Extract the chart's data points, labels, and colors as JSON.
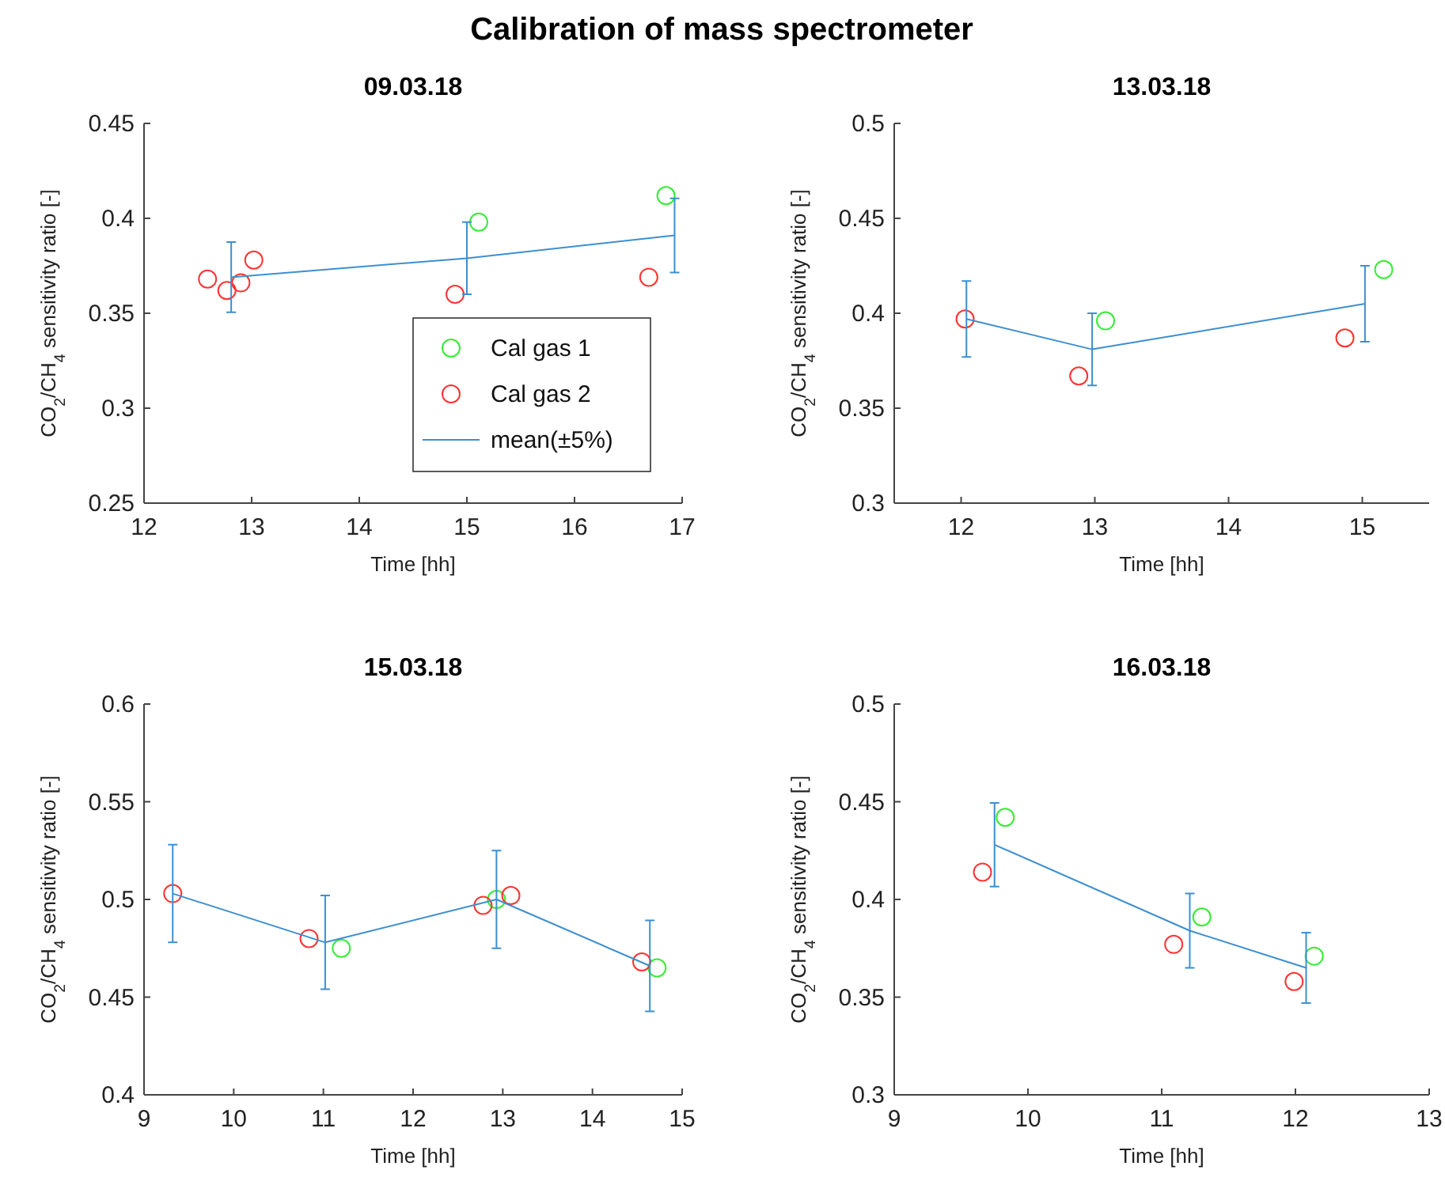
{
  "chart_data": [
    {
      "type": "scatter",
      "title": "09.03.18",
      "annotations": [
        "Calibration of mass spectrometer"
      ],
      "xlabel": "Time [hh]",
      "ylabel": "CO$_{2}$/CH$_{4}$ sensitivity ratio [-]",
      "xlim": [
        12,
        17
      ],
      "xticks": [
        12,
        13,
        14,
        15,
        16,
        17
      ],
      "ylim": [
        0.25,
        0.45
      ],
      "yticks": [
        0.25,
        0.3,
        0.35,
        0.4,
        0.45
      ],
      "legend": "bottom right",
      "marker": "circle",
      "series": [
        {
          "name": "Cal gas 1",
          "color": "#33ee33",
          "x": [
            15.11,
            16.85
          ],
          "values": [
            0.398,
            0.412
          ]
        },
        {
          "name": "Cal gas 2",
          "color": "#ff3333",
          "x": [
            12.59,
            12.77,
            12.9,
            13.02,
            14.89,
            16.69
          ],
          "values": [
            0.368,
            0.362,
            0.366,
            0.378,
            0.36,
            0.369
          ]
        },
        {
          "name": "mean(±5%)",
          "type": "line",
          "color": "#3d8fd0",
          "marker": "none",
          "x": [
            12.81,
            15.0,
            16.93
          ],
          "values": [
            0.369,
            0.379,
            0.391
          ],
          "errors": [
            0.0185,
            0.019,
            0.0195
          ]
        }
      ]
    },
    {
      "type": "scatter",
      "title": "13.03.18",
      "xlabel": "Time [hh]",
      "ylabel": "CO$_{2}$/CH$_{4}$ sensitivity ratio [-]",
      "xlim": [
        11.5,
        15.5
      ],
      "xticks": [
        12,
        13,
        14,
        15
      ],
      "ylim": [
        0.3,
        0.5
      ],
      "yticks": [
        0.3,
        0.35,
        0.4,
        0.45,
        0.5
      ],
      "marker": "circle",
      "series": [
        {
          "color": "#33ee33",
          "x": [
            13.08,
            15.16
          ],
          "values": [
            0.396,
            0.423
          ]
        },
        {
          "color": "#ff3333",
          "x": [
            12.03,
            12.88,
            14.87
          ],
          "values": [
            0.397,
            0.367,
            0.387
          ]
        },
        {
          "type": "line",
          "color": "#3d8fd0",
          "marker": "none",
          "x": [
            12.04,
            12.98,
            15.02
          ],
          "values": [
            0.397,
            0.381,
            0.405
          ],
          "errors": [
            0.02,
            0.019,
            0.02
          ]
        }
      ]
    },
    {
      "type": "scatter",
      "title": "15.03.18",
      "xlabel": "Time [hh]",
      "ylabel": "CO$_{2}$/CH$_{4}$ sensitivity ratio [-]",
      "xlim": [
        9,
        15
      ],
      "xticks": [
        9,
        10,
        11,
        12,
        13,
        14,
        15
      ],
      "ylim": [
        0.4,
        0.6
      ],
      "yticks": [
        0.4,
        0.45,
        0.5,
        0.55,
        0.6
      ],
      "marker": "circle",
      "series": [
        {
          "color": "#33ee33",
          "x": [
            11.2,
            12.93,
            14.72
          ],
          "values": [
            0.475,
            0.5,
            0.465
          ]
        },
        {
          "color": "#ff3333",
          "x": [
            9.32,
            10.84,
            12.78,
            13.09,
            14.55
          ],
          "values": [
            0.503,
            0.48,
            0.497,
            0.502,
            0.468
          ]
        },
        {
          "type": "line",
          "color": "#3d8fd0",
          "marker": "none",
          "x": [
            9.32,
            11.02,
            12.93,
            14.64
          ],
          "values": [
            0.503,
            0.478,
            0.5,
            0.466
          ],
          "errors": [
            0.025,
            0.024,
            0.025,
            0.0233
          ]
        }
      ]
    },
    {
      "type": "scatter",
      "title": "16.03.18",
      "xlabel": "Time [hh]",
      "ylabel": "CO$_{2}$/CH$_{4}$ sensitivity ratio [-]",
      "xlim": [
        9,
        13
      ],
      "xticks": [
        9,
        10,
        11,
        12,
        13
      ],
      "ylim": [
        0.3,
        0.5
      ],
      "yticks": [
        0.3,
        0.35,
        0.4,
        0.45,
        0.5
      ],
      "marker": "circle",
      "series": [
        {
          "color": "#33ee33",
          "x": [
            9.83,
            11.3,
            12.14
          ],
          "values": [
            0.442,
            0.391,
            0.371
          ]
        },
        {
          "color": "#ff3333",
          "x": [
            9.66,
            11.09,
            11.99
          ],
          "values": [
            0.414,
            0.377,
            0.358
          ]
        },
        {
          "type": "line",
          "color": "#3d8fd0",
          "marker": "none",
          "x": [
            9.75,
            11.21,
            12.08
          ],
          "values": [
            0.428,
            0.384,
            0.365
          ],
          "errors": [
            0.0214,
            0.019,
            0.018
          ]
        }
      ]
    }
  ]
}
